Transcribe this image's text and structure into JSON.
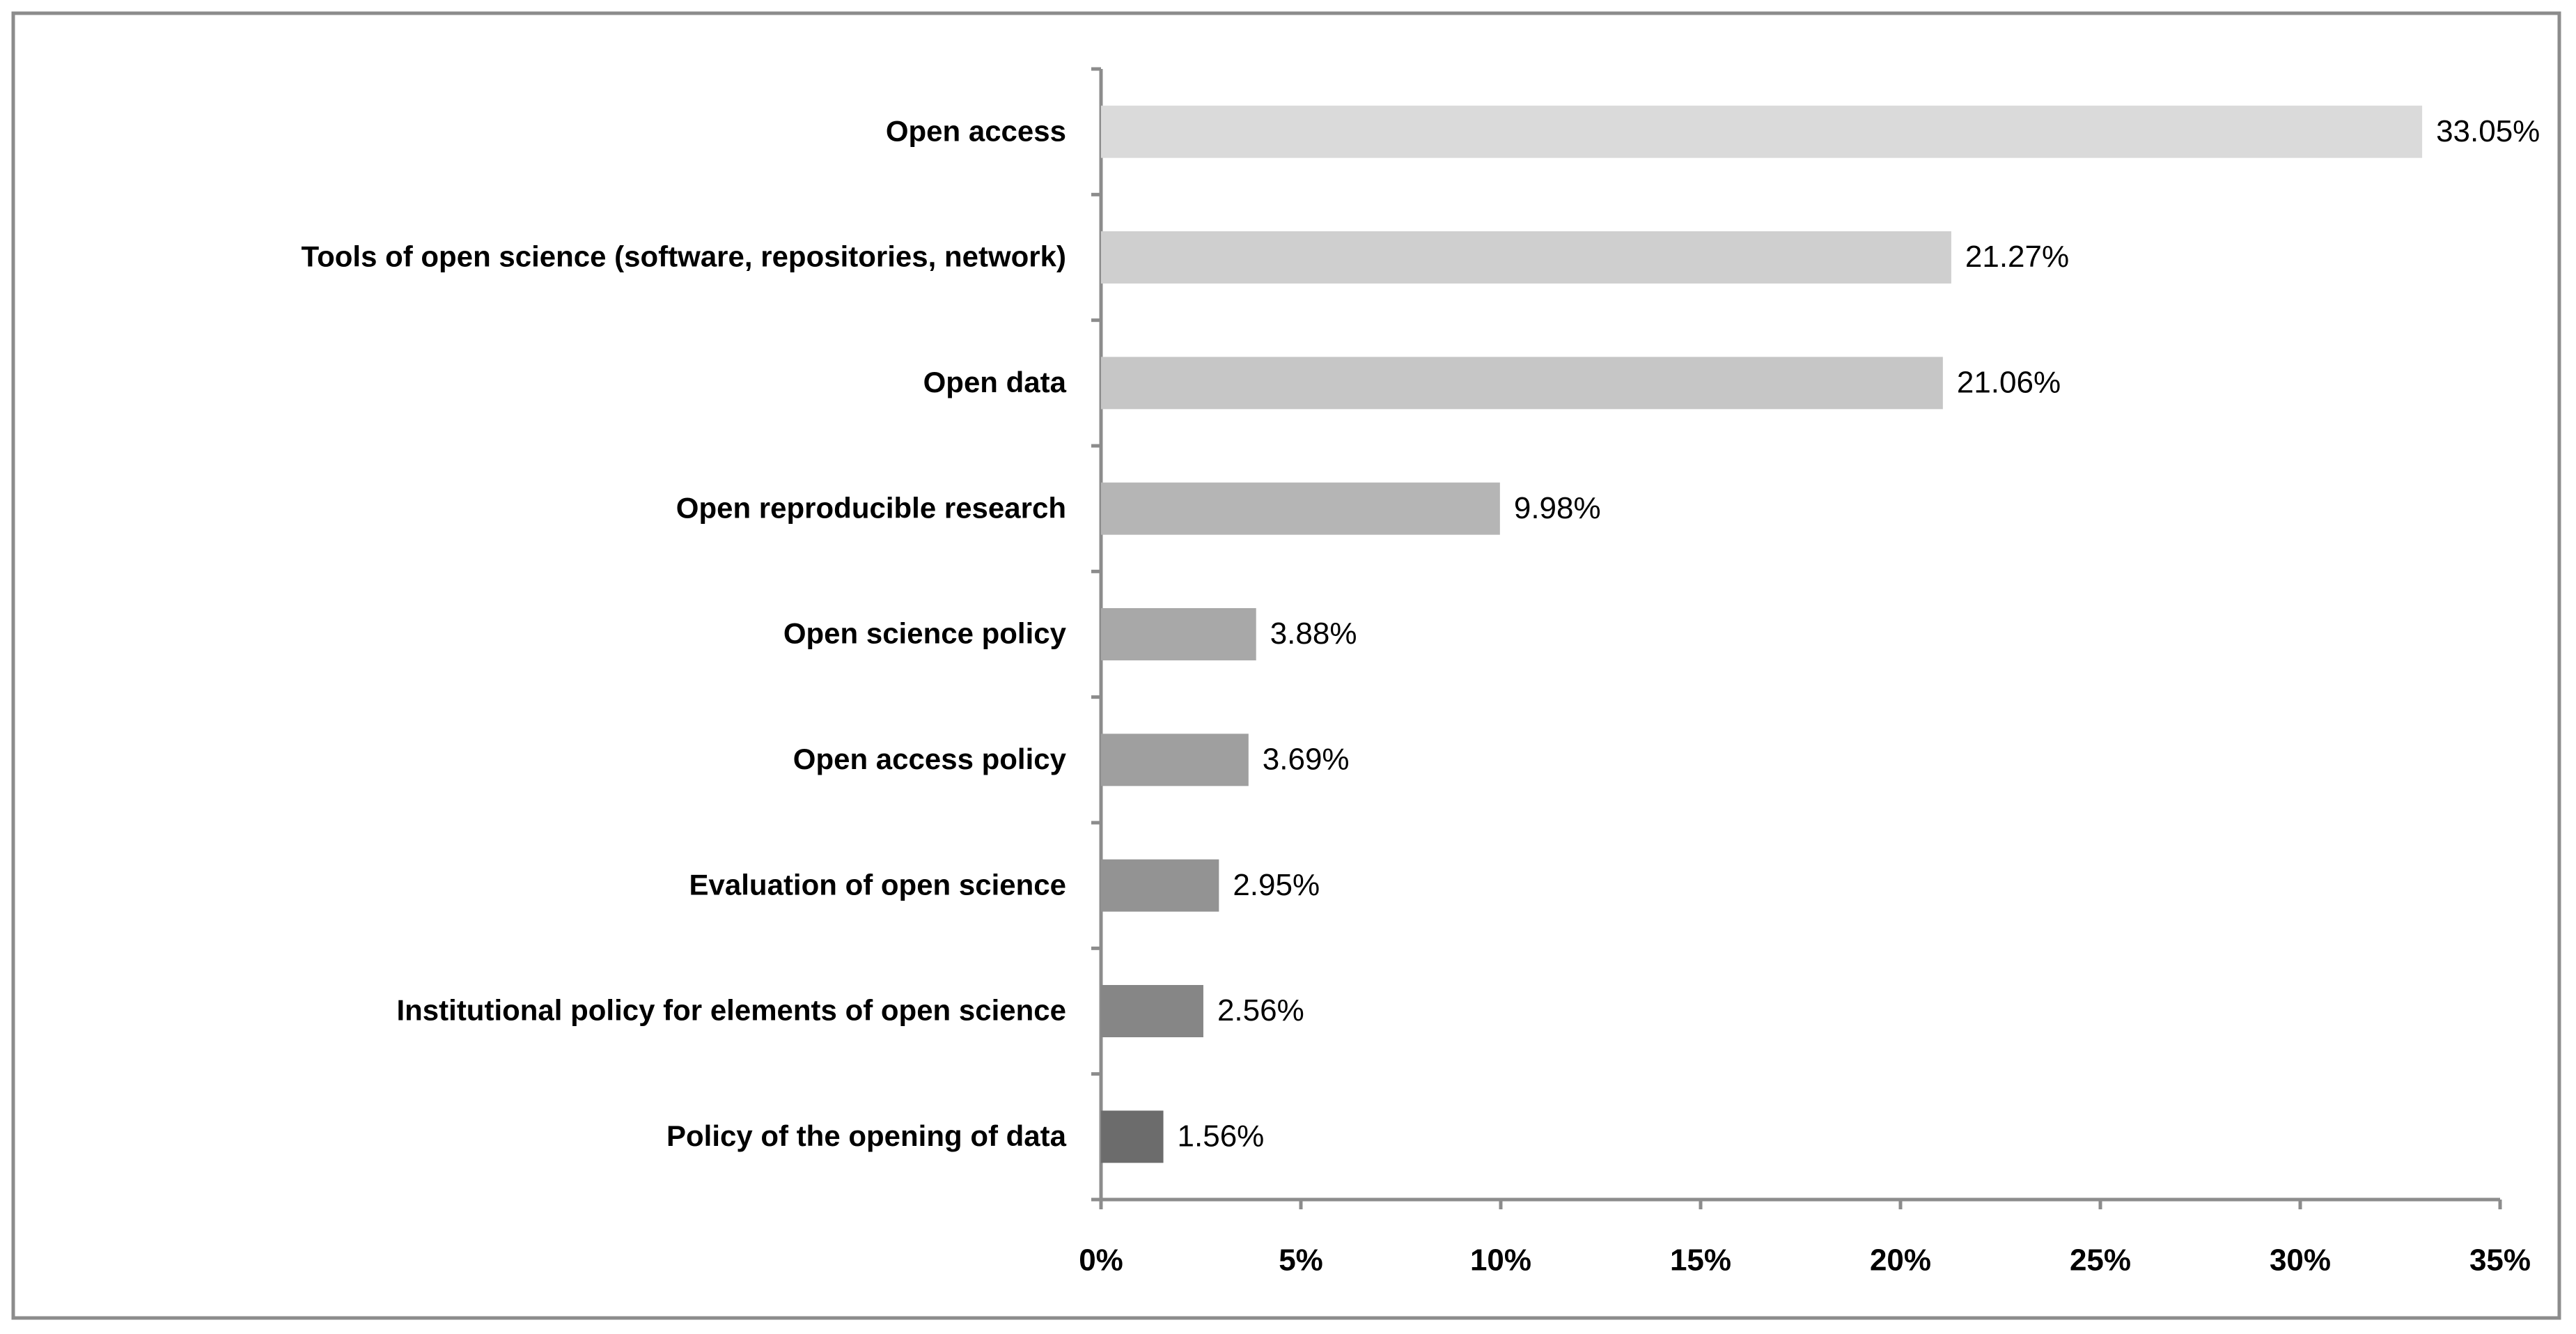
{
  "chart_data": {
    "type": "bar",
    "orientation": "horizontal",
    "categories": [
      "Open access",
      "Tools of open science (software, repositories, network)",
      "Open data",
      "Open reproducible research",
      "Open science policy",
      "Open access policy",
      "Evaluation of open science",
      "Institutional  policy  for elements of open science",
      "Policy of the opening of data"
    ],
    "values": [
      33.05,
      21.27,
      21.06,
      9.98,
      3.88,
      3.69,
      2.95,
      2.56,
      1.56
    ],
    "value_labels": [
      "33.05%",
      "21.27%",
      "21.06%",
      "9.98%",
      "3.88%",
      "3.69%",
      "2.95%",
      "2.56%",
      "1.56%"
    ],
    "colors": [
      "#dadada",
      "#cfcfcf",
      "#c6c6c6",
      "#b5b5b5",
      "#a8a8a8",
      "#9f9f9f",
      "#939393",
      "#868686",
      "#6c6c6c"
    ],
    "xlim": [
      0,
      35
    ],
    "xticks": [
      {
        "value": 0,
        "label": "0%"
      },
      {
        "value": 5,
        "label": "5%"
      },
      {
        "value": 10,
        "label": "10%"
      },
      {
        "value": 15,
        "label": "15%"
      },
      {
        "value": 20,
        "label": "20%"
      },
      {
        "value": 25,
        "label": "25%"
      },
      {
        "value": 30,
        "label": "30%"
      },
      {
        "value": 35,
        "label": "35%"
      }
    ],
    "grid": false
  }
}
